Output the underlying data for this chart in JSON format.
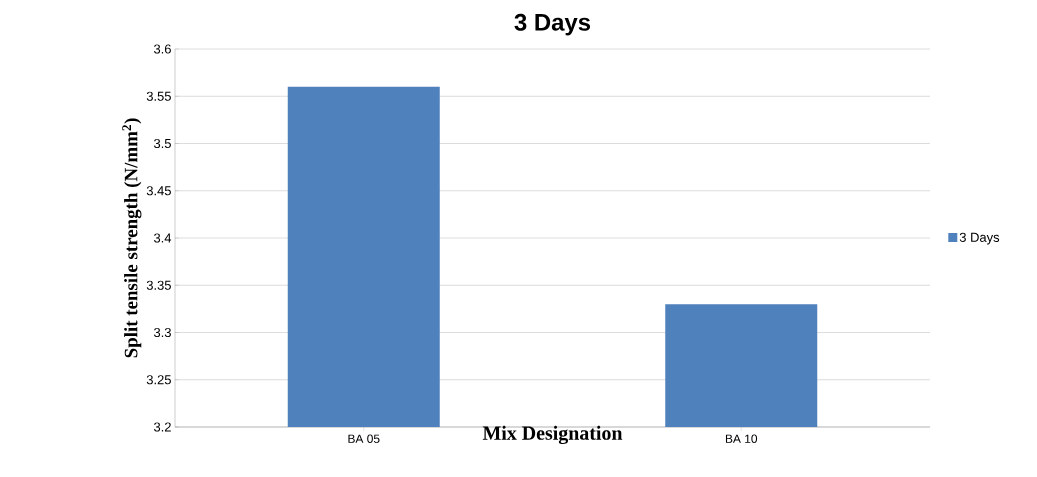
{
  "chart_data": {
    "type": "bar",
    "title": "3 Days",
    "xlabel": "Mix Designation",
    "ylabel": "Split tensile strength (N/mm$^{2}$)",
    "categories": [
      "BA 05",
      "BA 10"
    ],
    "series": [
      {
        "name": "3 Days",
        "color": "#4f81bd",
        "values": [
          3.56,
          3.33
        ]
      }
    ],
    "ylim": [
      3.2,
      3.6
    ],
    "yticks": [
      3.2,
      3.25,
      3.3,
      3.35,
      3.4,
      3.45,
      3.5,
      3.55,
      3.6
    ],
    "grid": "y",
    "legend": "right"
  }
}
